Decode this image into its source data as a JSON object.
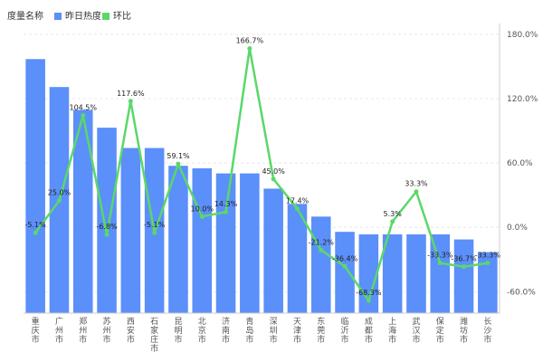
{
  "legend": {
    "title": "度量名称",
    "bar_label": "昨日热度",
    "line_label": "环比"
  },
  "colors": {
    "bar": "#5B8FF9",
    "line": "#5AD869",
    "grid": "#e8e8e8",
    "axis": "#cccccc"
  },
  "chart_data": {
    "type": "bar",
    "categories": [
      "重庆市",
      "广州市",
      "郑州市",
      "苏州市",
      "西安市",
      "石家庄市",
      "昆明市",
      "北京市",
      "济南市",
      "青岛市",
      "深圳市",
      "天津市",
      "东莞市",
      "临沂市",
      "成都市",
      "上海市",
      "武汉市",
      "保定市",
      "潍坊市",
      "长沙市"
    ],
    "series": [
      {
        "name": "昨日热度",
        "type": "bar",
        "values": [
          100,
          89,
          80,
          73,
          65,
          65,
          58,
          57,
          55,
          55,
          49,
          43,
          38,
          32,
          31,
          31,
          31,
          31,
          29,
          24
        ]
      },
      {
        "name": "环比",
        "type": "line",
        "unit": "%",
        "values": [
          -5.1,
          25.0,
          104.5,
          -6.8,
          117.6,
          -5.1,
          59.1,
          10.0,
          14.3,
          166.7,
          45.0,
          17.4,
          -21.2,
          -36.4,
          -68.3,
          5.3,
          33.3,
          -33.3,
          -36.7,
          -33.3
        ]
      }
    ],
    "y_right": {
      "ticks": [
        "180.0%",
        "120.0%",
        "60.0%",
        "0.0%",
        "-60.0%"
      ],
      "tick_values": [
        180,
        120,
        60,
        0,
        -60
      ],
      "ylim": [
        -80,
        190
      ]
    },
    "y_left": {
      "ylim": [
        0,
        114
      ]
    },
    "grid": true,
    "legend_position": "top-left"
  }
}
